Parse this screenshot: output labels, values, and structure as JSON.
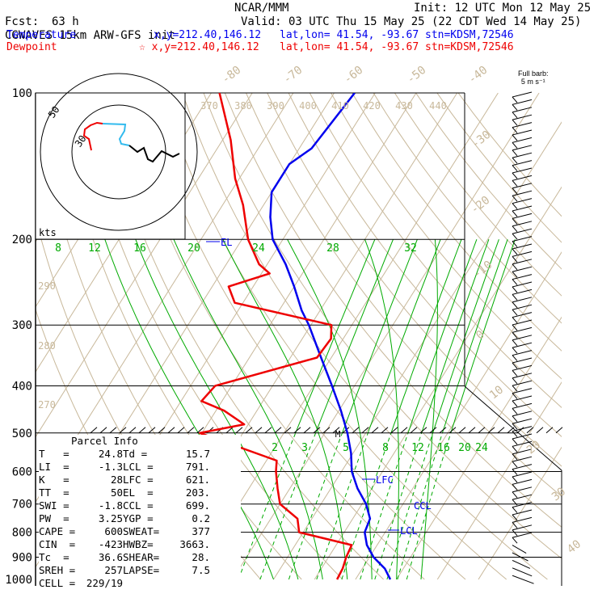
{
  "header": {
    "model": "CGWAVES 15km ARW-GFS init",
    "org": "NCAR/MMM",
    "init": "Init: 12 UTC Mon 12 May 25",
    "fcst_label": "Fcst:",
    "fcst_value": "63 h",
    "valid": "Valid: 03 UTC Thu 15 May 25 (22 CDT Wed 14 May 25)",
    "temp_label": "Temperature",
    "temp_xy": "x,y=212.40,146.12",
    "temp_latlon": "lat,lon= 41.54, -93.67",
    "temp_stn": "stn=KDSM,72546",
    "dew_label": "Dewpoint",
    "dew_xy": "☆ x,y=212.40,146.12",
    "dew_latlon": "lat,lon= 41.54, -93.67",
    "dew_stn": "stn=KDSM,72546"
  },
  "barb_key": {
    "line1": "Full barb:",
    "line2": "5 m s⁻¹"
  },
  "hodograph": {
    "ring_labels": [
      "30",
      "50"
    ],
    "units": "kts"
  },
  "colors": {
    "temperature": "#0000ee",
    "dewpoint": "#ee0000",
    "isotherm": "#c8b89a",
    "mixing_ratio": "#00aa00",
    "black": "#000000",
    "hodo_cyan": "#33bbee"
  },
  "chart_data": {
    "type": "line",
    "title": "Skew-T log-P sounding",
    "yscale": "log pressure",
    "ylim": [
      1000,
      100
    ],
    "pressure_ticks": [
      "100",
      "200",
      "300",
      "400",
      "500",
      "600",
      "700",
      "800",
      "900",
      "1000"
    ],
    "isotherm_labels": [
      "-80",
      "-70",
      "-60",
      "-50",
      "-40",
      "-30",
      "-20",
      "-10",
      "0",
      "10",
      "20",
      "30",
      "40"
    ],
    "theta_labels": [
      "370",
      "380",
      "390",
      "400",
      "410",
      "420",
      "430",
      "440",
      "290",
      "280",
      "270"
    ],
    "mixing_ratio_labels_upper": [
      "8",
      "12",
      "16",
      "20",
      "24",
      "28",
      "32"
    ],
    "mixing_ratio_labels_lower": [
      "2",
      "3",
      "5",
      "8",
      "12",
      "16",
      "20",
      "24"
    ],
    "level_markers": [
      "EL",
      "LFC",
      "CCL",
      "LCL",
      "M"
    ],
    "series": [
      {
        "name": "Temperature",
        "points": [
          [
            1000,
            28.5
          ],
          [
            950,
            25.5
          ],
          [
            900,
            21.0
          ],
          [
            850,
            17.5
          ],
          [
            800,
            15.0
          ],
          [
            750,
            14.2
          ],
          [
            700,
            11.0
          ],
          [
            650,
            6.5
          ],
          [
            600,
            2.5
          ],
          [
            550,
            -0.5
          ],
          [
            500,
            -4.5
          ],
          [
            450,
            -9.5
          ],
          [
            400,
            -15.5
          ],
          [
            350,
            -22.5
          ],
          [
            300,
            -30.5
          ],
          [
            280,
            -34.5
          ],
          [
            250,
            -40.0
          ],
          [
            225,
            -45.5
          ],
          [
            200,
            -52.5
          ],
          [
            180,
            -56.5
          ],
          [
            160,
            -60.0
          ],
          [
            140,
            -60.0
          ],
          [
            130,
            -57.0
          ],
          [
            100,
            -55.0
          ]
        ]
      },
      {
        "name": "Dewpoint",
        "points": [
          [
            1000,
            15.5
          ],
          [
            950,
            15.2
          ],
          [
            900,
            14.3
          ],
          [
            850,
            13.8
          ],
          [
            800,
            -1.0
          ],
          [
            750,
            -3.5
          ],
          [
            700,
            -10.0
          ],
          [
            650,
            -13.0
          ],
          [
            600,
            -16.0
          ],
          [
            570,
            -17.5
          ],
          [
            500,
            -40.5
          ],
          [
            480,
            -31.0
          ],
          [
            450,
            -38.0
          ],
          [
            430,
            -45.0
          ],
          [
            400,
            -44.0
          ],
          [
            350,
            -23.5
          ],
          [
            320,
            -23.0
          ],
          [
            300,
            -25.0
          ],
          [
            270,
            -52.0
          ],
          [
            250,
            -56.0
          ],
          [
            235,
            -48.0
          ],
          [
            225,
            -52.0
          ],
          [
            200,
            -58.5
          ],
          [
            170,
            -65.0
          ],
          [
            150,
            -71.0
          ],
          [
            125,
            -78.0
          ],
          [
            100,
            -88.0
          ]
        ]
      }
    ]
  },
  "parcel_info": {
    "title": "Parcel Info",
    "rows": [
      [
        "T   =",
        "24.8",
        "Td =",
        "15.7"
      ],
      [
        "LI  =",
        "-1.3",
        "LCL =",
        "791."
      ],
      [
        "K   =",
        "28",
        "LFC =",
        "621."
      ],
      [
        "TT  =",
        "50",
        "EL  =",
        "203."
      ],
      [
        "SWI =",
        "-1.8",
        "CCL =",
        "699."
      ],
      [
        "PW  =",
        "3.25",
        "YGP =",
        "0.2"
      ],
      [
        "CAPE =",
        "600",
        "SWEAT=",
        "377"
      ],
      [
        "CIN  =",
        "-423",
        "HWBZ=",
        "3663."
      ],
      [
        "Tc  =",
        "36.6",
        "SHEAR=",
        "28."
      ],
      [
        "SREH =",
        "257",
        "LAPSE=",
        "7.5"
      ],
      [
        "CELL =",
        "229/19",
        "",
        ""
      ]
    ]
  }
}
